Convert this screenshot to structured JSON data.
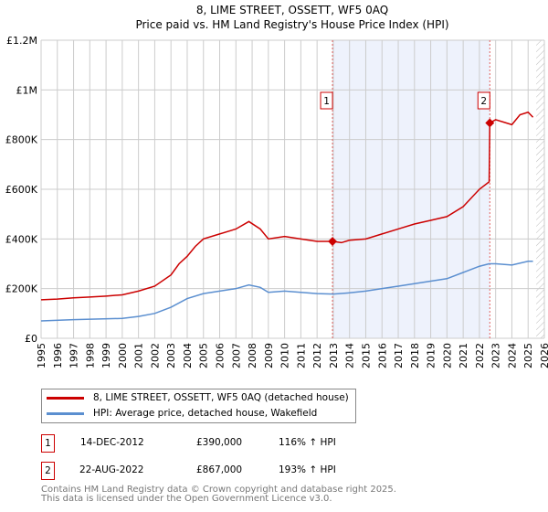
{
  "chart_data": {
    "type": "line",
    "title": "8, LIME STREET, OSSETT, WF5 0AQ",
    "subtitle": "Price paid vs. HM Land Registry's House Price Index (HPI)",
    "xlabel": "",
    "ylabel": "",
    "xlim": [
      1995,
      2026
    ],
    "ylim": [
      0,
      1200000
    ],
    "y_ticks": [
      {
        "v": 0,
        "label": "£0"
      },
      {
        "v": 200000,
        "label": "£200K"
      },
      {
        "v": 400000,
        "label": "£400K"
      },
      {
        "v": 600000,
        "label": "£600K"
      },
      {
        "v": 800000,
        "label": "£800K"
      },
      {
        "v": 1000000,
        "label": "£1M"
      },
      {
        "v": 1200000,
        "label": "£1.2M"
      }
    ],
    "x_ticks": [
      "1995",
      "1996",
      "1997",
      "1998",
      "1999",
      "2000",
      "2001",
      "2002",
      "2003",
      "2004",
      "2005",
      "2006",
      "2007",
      "2008",
      "2009",
      "2010",
      "2011",
      "2012",
      "2013",
      "2014",
      "2015",
      "2016",
      "2017",
      "2018",
      "2019",
      "2020",
      "2021",
      "2022",
      "2023",
      "2024",
      "2025",
      "2026"
    ],
    "grid": true,
    "series": [
      {
        "name": "8, LIME STREET, OSSETT, WF5 0AQ (detached house)",
        "color": "#cc0000",
        "x": [
          1995,
          1996,
          1997,
          1998,
          1999,
          2000,
          2001,
          2002,
          2003,
          2003.5,
          2004,
          2004.5,
          2005,
          2006,
          2007,
          2007.8,
          2008.5,
          2009,
          2010,
          2011,
          2012,
          2012.95,
          2013.5,
          2014,
          2015,
          2016,
          2017,
          2018,
          2019,
          2020,
          2021,
          2022,
          2022.6,
          2022.64,
          2023,
          2023.5,
          2024,
          2024.5,
          2025,
          2025.3
        ],
        "y": [
          155000,
          158000,
          163000,
          166000,
          170000,
          175000,
          190000,
          210000,
          255000,
          300000,
          330000,
          370000,
          400000,
          420000,
          440000,
          470000,
          440000,
          400000,
          410000,
          400000,
          390000,
          390000,
          385000,
          395000,
          400000,
          420000,
          440000,
          460000,
          475000,
          490000,
          530000,
          600000,
          630000,
          867000,
          880000,
          870000,
          860000,
          900000,
          910000,
          890000
        ]
      },
      {
        "name": "HPI: Average price, detached house, Wakefield",
        "color": "#5b8fd0",
        "x": [
          1995,
          1997,
          2000,
          2001,
          2002,
          2003,
          2004,
          2005,
          2006,
          2007,
          2007.8,
          2008.5,
          2009,
          2010,
          2011,
          2012,
          2013,
          2014,
          2015,
          2016,
          2017,
          2018,
          2019,
          2020,
          2021,
          2022,
          2022.6,
          2023,
          2024,
          2025,
          2025.3
        ],
        "y": [
          70000,
          75000,
          80000,
          88000,
          100000,
          125000,
          160000,
          180000,
          190000,
          200000,
          215000,
          205000,
          185000,
          190000,
          185000,
          180000,
          178000,
          183000,
          190000,
          200000,
          210000,
          220000,
          230000,
          240000,
          265000,
          290000,
          300000,
          300000,
          295000,
          310000,
          310000
        ]
      }
    ],
    "sales": [
      {
        "id": "1",
        "x": 2012.95,
        "price": 390000,
        "date": "14-DEC-2012",
        "price_label": "£390,000",
        "hpi": "116% ↑ HPI"
      },
      {
        "id": "2",
        "x": 2022.64,
        "price": 867000,
        "date": "22-AUG-2022",
        "price_label": "£867,000",
        "hpi": "193% ↑ HPI"
      }
    ],
    "legend_placement": "bottom"
  },
  "footer": {
    "line1": "Contains HM Land Registry data © Crown copyright and database right 2025.",
    "line2": "This data is licensed under the Open Government Licence v3.0."
  }
}
